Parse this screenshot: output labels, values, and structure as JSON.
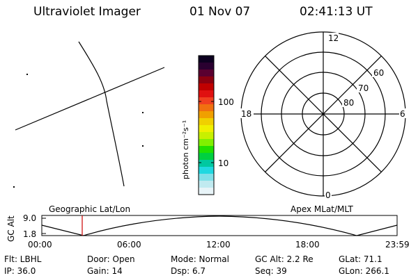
{
  "header": {
    "instrument": "Ultraviolet Imager",
    "date": "01 Nov 07",
    "time": "02:41:13 UT"
  },
  "colorbar": {
    "unit_label": "photon cm⁻²s⁻¹",
    "ticks": [
      "100",
      "10"
    ],
    "colors": [
      "#0d0020",
      "#2a0030",
      "#5a0030",
      "#8c0010",
      "#c00000",
      "#e01010",
      "#f04020",
      "#f07010",
      "#f0a000",
      "#f0d000",
      "#f0f000",
      "#c8f000",
      "#80f000",
      "#20e000",
      "#00d040",
      "#00c8a0",
      "#20d8e0",
      "#80e0e8",
      "#c0eaf0",
      "#e8f4f8"
    ]
  },
  "polar_grid": {
    "mlt_labels": [
      "12",
      "18",
      "6",
      "0"
    ],
    "lat_labels": [
      "60",
      "70",
      "80"
    ]
  },
  "timeline": {
    "left_label": "Geographic Lat/Lon",
    "right_label": "Apex MLat/MLT",
    "y_axis_label": "GC Alt",
    "y_ticks": [
      "9.0",
      "1.8"
    ],
    "x_ticks": [
      "00:00",
      "06:00",
      "12:00",
      "18:00",
      "23:59"
    ],
    "marker_color": "#cc0000"
  },
  "info": {
    "flt": "Flt: LBHL",
    "door": "Door: Open",
    "mode": "Mode: Normal",
    "gc_alt": "GC Alt: 2.2 Re",
    "glat": "GLat:  71.1",
    "ip": "IP: 36.0",
    "gain": "Gain: 14",
    "dsp": "Dsp:    6.7",
    "seq": "Seq: 39",
    "glon": "GLon: 266.1"
  }
}
